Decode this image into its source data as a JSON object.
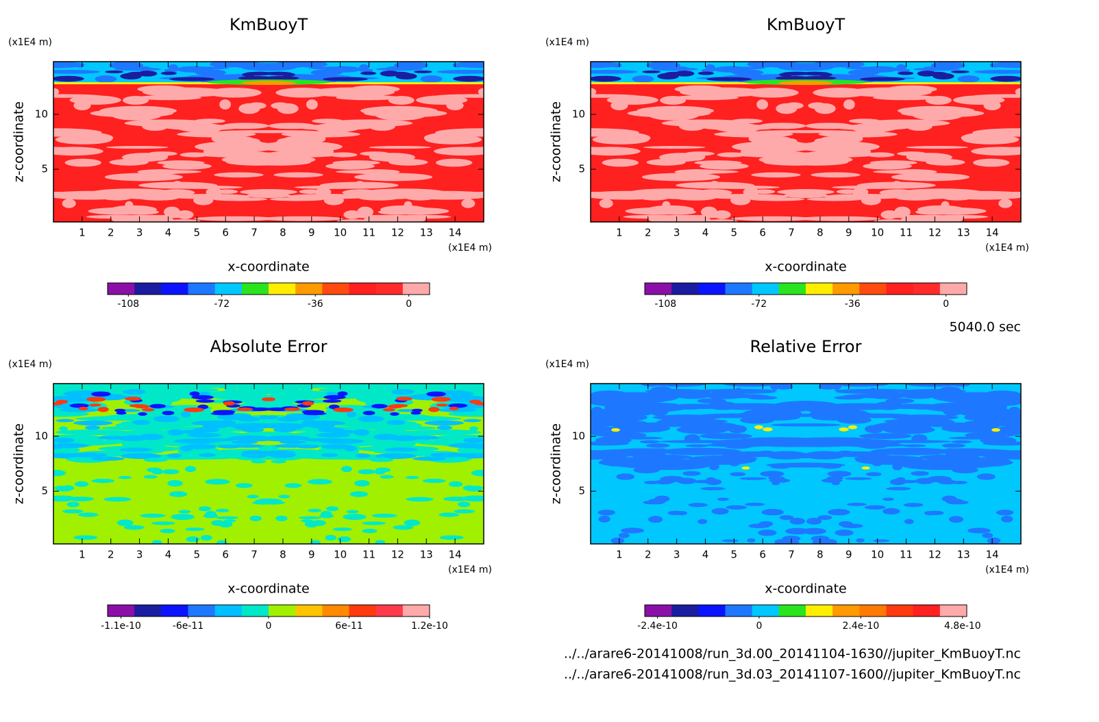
{
  "chart_data": [
    {
      "type": "contour",
      "title": "KmBuoyT",
      "xlabel": "x-coordinate",
      "ylabel": "z-coordinate",
      "x_unit": "(x1E4 m)",
      "y_unit": "(x1E4 m)",
      "xlim": [
        0,
        15
      ],
      "ylim": [
        0.2,
        14.8
      ],
      "xticks": [
        1,
        2,
        3,
        4,
        5,
        6,
        7,
        8,
        9,
        10,
        11,
        12,
        13,
        14
      ],
      "yticks": [
        5,
        10
      ],
      "colorbar": {
        "clim": [
          -116,
          8
        ],
        "ticks": [
          -108,
          -72,
          -36,
          0
        ],
        "colors": [
          "#8a10a8",
          "#1c1ca0",
          "#0a14ff",
          "#1e78ff",
          "#00c8ff",
          "#2ae41e",
          "#ffee00",
          "#ff9a00",
          "#ff4a10",
          "#ff2020",
          "#ff2a2a",
          "#ffaaaa"
        ]
      }
    },
    {
      "type": "contour",
      "title": "KmBuoyT",
      "xlabel": "x-coordinate",
      "ylabel": "z-coordinate",
      "x_unit": "(x1E4 m)",
      "y_unit": "(x1E4 m)",
      "xlim": [
        0,
        15
      ],
      "ylim": [
        0.2,
        14.8
      ],
      "xticks": [
        1,
        2,
        3,
        4,
        5,
        6,
        7,
        8,
        9,
        10,
        11,
        12,
        13,
        14
      ],
      "yticks": [
        5,
        10
      ],
      "colorbar": {
        "clim": [
          -116,
          8
        ],
        "ticks": [
          -108,
          -72,
          -36,
          0
        ],
        "colors": [
          "#8a10a8",
          "#1c1ca0",
          "#0a14ff",
          "#1e78ff",
          "#00c8ff",
          "#2ae41e",
          "#ffee00",
          "#ff9a00",
          "#ff4a10",
          "#ff2020",
          "#ff2a2a",
          "#ffaaaa"
        ]
      }
    },
    {
      "type": "contour",
      "title": "Absolute Error",
      "xlabel": "x-coordinate",
      "ylabel": "z-coordinate",
      "x_unit": "(x1E4 m)",
      "y_unit": "(x1E4 m)",
      "xlim": [
        0,
        15
      ],
      "ylim": [
        0.2,
        14.8
      ],
      "xticks": [
        1,
        2,
        3,
        4,
        5,
        6,
        7,
        8,
        9,
        10,
        11,
        12,
        13,
        14
      ],
      "yticks": [
        5,
        10
      ],
      "colorbar": {
        "clim": [
          -1.2e-10,
          1.2e-10
        ],
        "ticks": [
          {
            "value": -1.1e-10,
            "label": "-1.1e-10"
          },
          {
            "value": -6e-11,
            "label": "-6e-11"
          },
          0,
          {
            "value": 6e-11,
            "label": "6e-11"
          },
          {
            "value": 1.2e-10,
            "label": "1.2e-10"
          }
        ],
        "colors": [
          "#8a10a8",
          "#1c1ca0",
          "#0a14ff",
          "#1e78ff",
          "#00c0ff",
          "#00e8c8",
          "#a0f000",
          "#ffc400",
          "#ff8a00",
          "#ff3a10",
          "#ff3a4a",
          "#ffaaaa"
        ]
      }
    },
    {
      "type": "contour",
      "title": "Relative Error",
      "xlabel": "x-coordinate",
      "ylabel": "z-coordinate",
      "x_unit": "(x1E4 m)",
      "y_unit": "(x1E4 m)",
      "xlim": [
        0,
        15
      ],
      "ylim": [
        0.2,
        14.8
      ],
      "xticks": [
        1,
        2,
        3,
        4,
        5,
        6,
        7,
        8,
        9,
        10,
        11,
        12,
        13,
        14
      ],
      "yticks": [
        5,
        10
      ],
      "colorbar": {
        "clim": [
          -2.7e-10,
          4.9e-10
        ],
        "ticks": [
          {
            "value": -2.4e-10,
            "label": "-2.4e-10"
          },
          0,
          {
            "value": 2.4e-10,
            "label": "2.4e-10"
          },
          {
            "value": 4.8e-10,
            "label": "4.8e-10"
          }
        ],
        "colors": [
          "#8a10a8",
          "#1c1ca0",
          "#0a14ff",
          "#1e78ff",
          "#00c8ff",
          "#2ae41e",
          "#ffee00",
          "#ff9a00",
          "#ff7a00",
          "#ff3a10",
          "#ff2020",
          "#ffaaaa"
        ]
      }
    }
  ],
  "annotations": {
    "time": "5040.0 sec",
    "files": [
      "../../arare6-20141008/run_3d.00_20141104-1630//jupiter_KmBuoyT.nc",
      "../../arare6-20141008/run_3d.03_20141107-1600//jupiter_KmBuoyT.nc"
    ]
  }
}
